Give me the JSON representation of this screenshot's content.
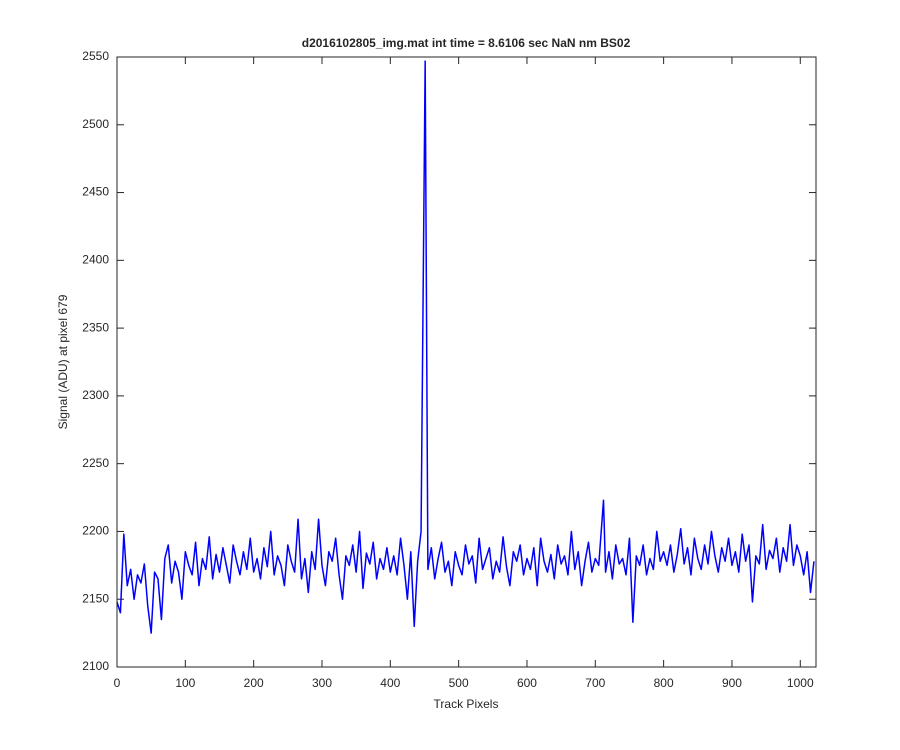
{
  "chart_data": {
    "type": "line",
    "title": "d2016102805_img.mat int time = 8.6106 sec  NaN nm BS02",
    "x_label": "Track Pixels",
    "y_label": "Signal (ADU) at pixel 679",
    "xlim": [
      0,
      1023
    ],
    "ylim": [
      2100,
      2550
    ],
    "xticks": [
      0,
      100,
      200,
      300,
      400,
      500,
      600,
      700,
      800,
      900,
      1000
    ],
    "yticks": [
      2100,
      2150,
      2200,
      2250,
      2300,
      2350,
      2400,
      2450,
      2500,
      2550
    ],
    "grid": false,
    "series": [
      {
        "color": "#0000ff",
        "x": [
          0,
          5,
          10,
          15,
          20,
          25,
          30,
          35,
          40,
          45,
          50,
          55,
          60,
          65,
          70,
          75,
          80,
          85,
          90,
          95,
          100,
          105,
          110,
          115,
          120,
          125,
          130,
          135,
          140,
          145,
          150,
          155,
          160,
          165,
          170,
          175,
          180,
          185,
          190,
          195,
          200,
          205,
          210,
          215,
          220,
          225,
          230,
          235,
          240,
          245,
          250,
          255,
          260,
          265,
          270,
          275,
          280,
          285,
          290,
          295,
          300,
          305,
          310,
          315,
          320,
          325,
          330,
          335,
          340,
          345,
          350,
          355,
          360,
          365,
          370,
          375,
          380,
          385,
          390,
          395,
          400,
          405,
          410,
          415,
          420,
          425,
          430,
          435,
          440,
          445,
          451,
          455,
          460,
          465,
          470,
          475,
          480,
          485,
          490,
          495,
          500,
          505,
          510,
          515,
          520,
          525,
          530,
          535,
          540,
          545,
          550,
          555,
          560,
          565,
          570,
          575,
          580,
          585,
          590,
          595,
          600,
          605,
          610,
          615,
          620,
          625,
          630,
          635,
          640,
          645,
          650,
          655,
          660,
          665,
          670,
          675,
          680,
          685,
          690,
          695,
          700,
          705,
          712,
          715,
          720,
          725,
          730,
          735,
          740,
          745,
          750,
          755,
          760,
          765,
          770,
          775,
          780,
          785,
          790,
          795,
          800,
          805,
          810,
          815,
          820,
          825,
          830,
          835,
          840,
          845,
          850,
          855,
          860,
          865,
          870,
          875,
          880,
          885,
          890,
          895,
          900,
          905,
          910,
          915,
          920,
          925,
          930,
          935,
          940,
          945,
          950,
          955,
          960,
          965,
          970,
          975,
          980,
          985,
          990,
          995,
          1000,
          1005,
          1010,
          1015,
          1020
        ],
        "values": [
          2148,
          2140,
          2198,
          2160,
          2172,
          2150,
          2168,
          2162,
          2176,
          2145,
          2125,
          2170,
          2165,
          2135,
          2180,
          2190,
          2162,
          2178,
          2170,
          2150,
          2185,
          2175,
          2168,
          2192,
          2160,
          2180,
          2172,
          2196,
          2165,
          2183,
          2170,
          2188,
          2175,
          2162,
          2190,
          2178,
          2168,
          2185,
          2172,
          2195,
          2170,
          2180,
          2165,
          2188,
          2174,
          2200,
          2168,
          2182,
          2175,
          2160,
          2190,
          2178,
          2170,
          2209,
          2165,
          2180,
          2155,
          2185,
          2172,
          2209,
          2175,
          2160,
          2185,
          2178,
          2195,
          2168,
          2150,
          2182,
          2175,
          2190,
          2170,
          2200,
          2158,
          2184,
          2176,
          2192,
          2165,
          2180,
          2172,
          2188,
          2170,
          2182,
          2168,
          2195,
          2175,
          2150,
          2185,
          2130,
          2178,
          2200,
          2547,
          2172,
          2188,
          2165,
          2180,
          2192,
          2170,
          2178,
          2160,
          2185,
          2175,
          2168,
          2190,
          2176,
          2182,
          2162,
          2195,
          2172,
          2180,
          2188,
          2165,
          2178,
          2170,
          2196,
          2174,
          2160,
          2185,
          2178,
          2190,
          2168,
          2180,
          2172,
          2188,
          2160,
          2195,
          2178,
          2170,
          2183,
          2165,
          2190,
          2176,
          2182,
          2168,
          2200,
          2172,
          2185,
          2160,
          2178,
          2192,
          2170,
          2180,
          2175,
          2223,
          2170,
          2185,
          2165,
          2190,
          2176,
          2180,
          2168,
          2195,
          2133,
          2182,
          2175,
          2190,
          2168,
          2180,
          2172,
          2200,
          2178,
          2185,
          2175,
          2190,
          2170,
          2183,
          2202,
          2176,
          2188,
          2168,
          2195,
          2180,
          2172,
          2190,
          2176,
          2200,
          2182,
          2170,
          2188,
          2178,
          2195,
          2175,
          2185,
          2170,
          2198,
          2178,
          2190,
          2148,
          2182,
          2176,
          2205,
          2172,
          2186,
          2180,
          2195,
          2170,
          2188,
          2178,
          2205,
          2175,
          2190,
          2182,
          2168,
          2185,
          2155,
          2178
        ]
      }
    ]
  }
}
